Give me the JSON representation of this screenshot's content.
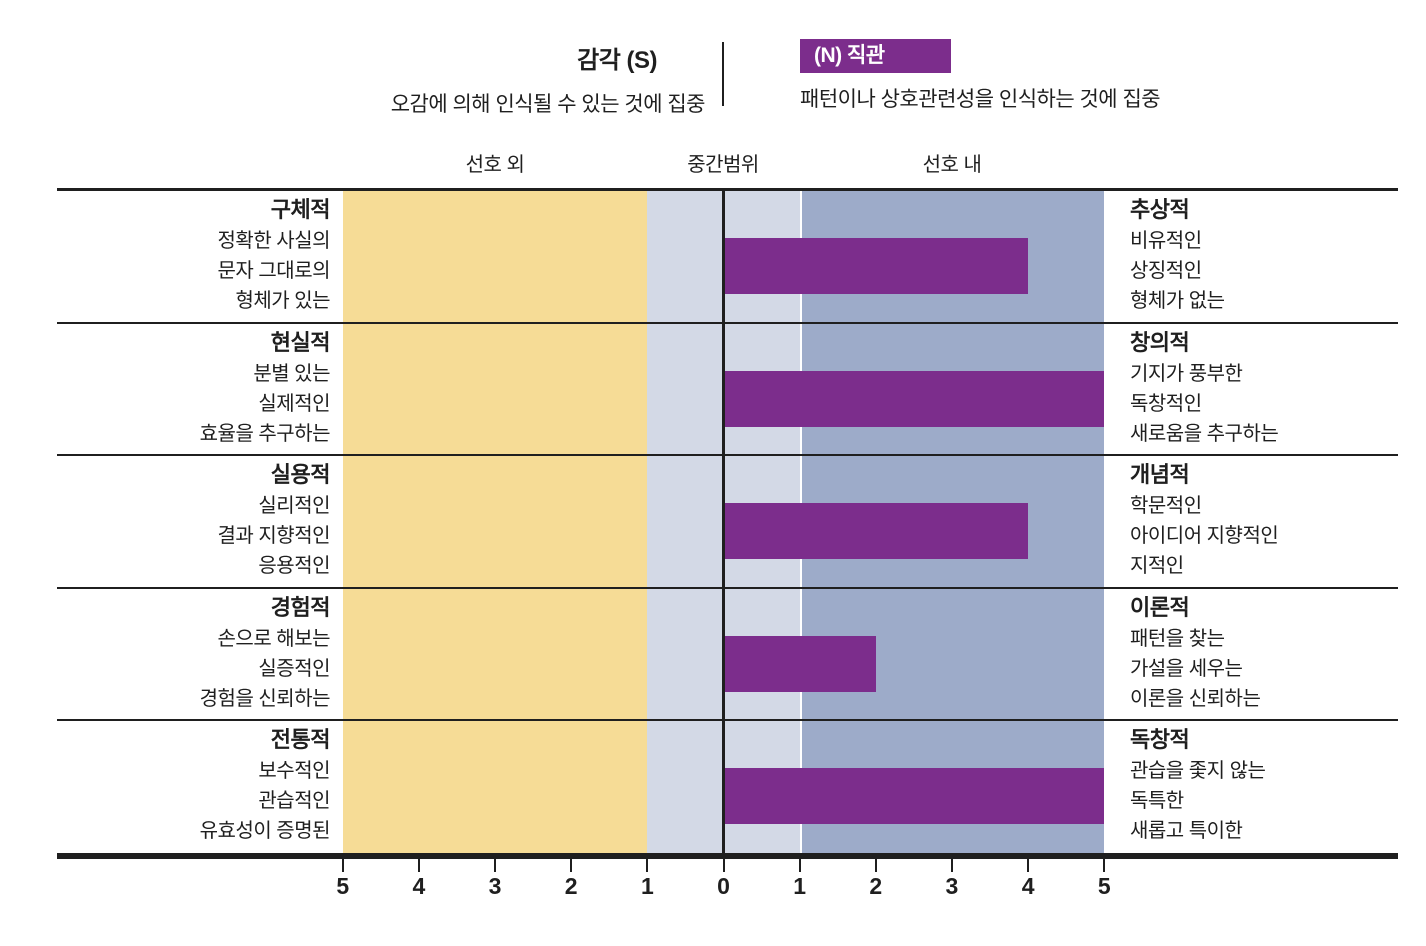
{
  "header": {
    "sensing": {
      "title": "감각 (S)",
      "subtitle": "오감에 의해 인식될 수 있는 것에 집중"
    },
    "intuition": {
      "title": "(N) 직관",
      "subtitle": "패턴이나 상호관련성을 인식하는 것에 집중"
    }
  },
  "zone_labels": {
    "out_of_preference": "선호 외",
    "midzone": "중간범위",
    "in_preference": "선호 내"
  },
  "chart_data": {
    "type": "bar",
    "orientation": "horizontal",
    "description": "Sensing (S) vs Intuition (N) facet scores; purple bars show strength of N preference from 0 to 5",
    "axis_tick_labels": [
      "5",
      "4",
      "3",
      "2",
      "1",
      "0",
      "1",
      "2",
      "3",
      "4",
      "5"
    ],
    "axis_value_range": [
      -5,
      5
    ],
    "zones": [
      {
        "label": "선호 외",
        "from": -5,
        "to": -1,
        "color": "#f6dc96"
      },
      {
        "label": "중간범위",
        "from": -1,
        "to": 1,
        "color": "#d3d9e6"
      },
      {
        "label": "선호 내",
        "from": 1,
        "to": 5,
        "color": "#9dabc9"
      }
    ],
    "rows": [
      {
        "left": {
          "title": "구체적",
          "lines": [
            "정확한 사실의",
            "문자 그대로의",
            "형체가 있는"
          ]
        },
        "right": {
          "title": "추상적",
          "lines": [
            "비유적인",
            "상징적인",
            "형체가 없는"
          ]
        },
        "value": 4
      },
      {
        "left": {
          "title": "현실적",
          "lines": [
            "분별 있는",
            "실제적인",
            "효율을 추구하는"
          ]
        },
        "right": {
          "title": "창의적",
          "lines": [
            "기지가 풍부한",
            "독창적인",
            "새로움을 추구하는"
          ]
        },
        "value": 5
      },
      {
        "left": {
          "title": "실용적",
          "lines": [
            "실리적인",
            "결과 지향적인",
            "응용적인"
          ]
        },
        "right": {
          "title": "개념적",
          "lines": [
            "학문적인",
            "아이디어 지향적인",
            "지적인"
          ]
        },
        "value": 4
      },
      {
        "left": {
          "title": "경험적",
          "lines": [
            "손으로 해보는",
            "실증적인",
            "경험을 신뢰하는"
          ]
        },
        "right": {
          "title": "이론적",
          "lines": [
            "패턴을 찾는",
            "가설을 세우는",
            "이론을 신뢰하는"
          ]
        },
        "value": 2
      },
      {
        "left": {
          "title": "전통적",
          "lines": [
            "보수적인",
            "관습적인",
            "유효성이 증명된"
          ]
        },
        "right": {
          "title": "독창적",
          "lines": [
            "관습을 좇지 않는",
            "독특한",
            "새롭고 특이한"
          ]
        },
        "value": 5
      }
    ],
    "colors": {
      "bar": "#7c2d8c",
      "badge": "#7c2d8c",
      "out_zone": "#f6dc96",
      "mid_zone": "#d3d9e6",
      "in_zone": "#9dabc9",
      "line": "#1f1f1f"
    }
  }
}
